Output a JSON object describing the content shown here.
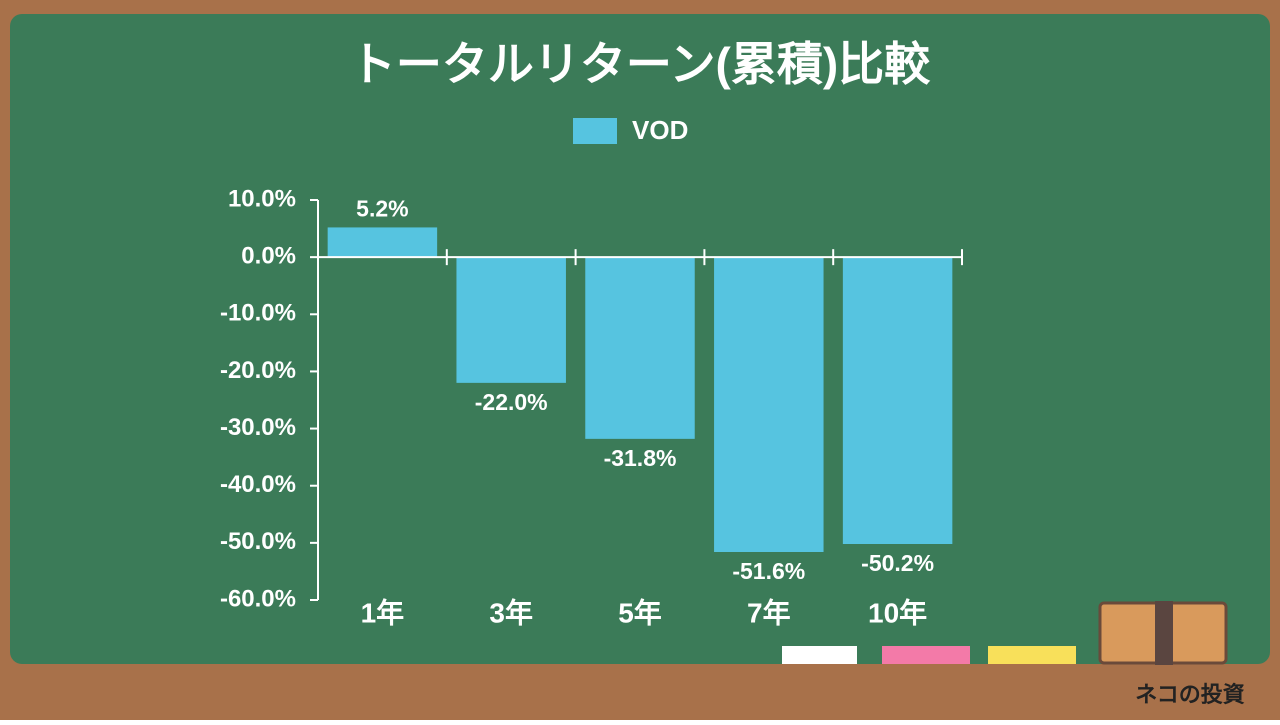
{
  "chart_data": {
    "type": "bar",
    "title": "トータルリターン(累積)比較",
    "categories": [
      "1年",
      "3年",
      "5年",
      "7年",
      "10年"
    ],
    "series": [
      {
        "name": "VOD",
        "color": "#56c4e0",
        "values": [
          5.2,
          -22.0,
          -31.8,
          -51.6,
          -50.2
        ],
        "value_labels": [
          "5.2%",
          "-22.0%",
          "-31.8%",
          "-51.6%",
          "-50.2%"
        ]
      }
    ],
    "ylim": [
      -60,
      10
    ],
    "yticks": [
      {
        "value": 10,
        "label": "10.0%"
      },
      {
        "value": 0,
        "label": "0.0%"
      },
      {
        "value": -10,
        "label": "-10.0%"
      },
      {
        "value": -20,
        "label": "-20.0%"
      },
      {
        "value": -30,
        "label": "-30.0%"
      },
      {
        "value": -40,
        "label": "-40.0%"
      },
      {
        "value": -50,
        "label": "-50.0%"
      },
      {
        "value": -60,
        "label": "-60.0%"
      }
    ],
    "legend": "top"
  },
  "watermark": "ネコの投資"
}
